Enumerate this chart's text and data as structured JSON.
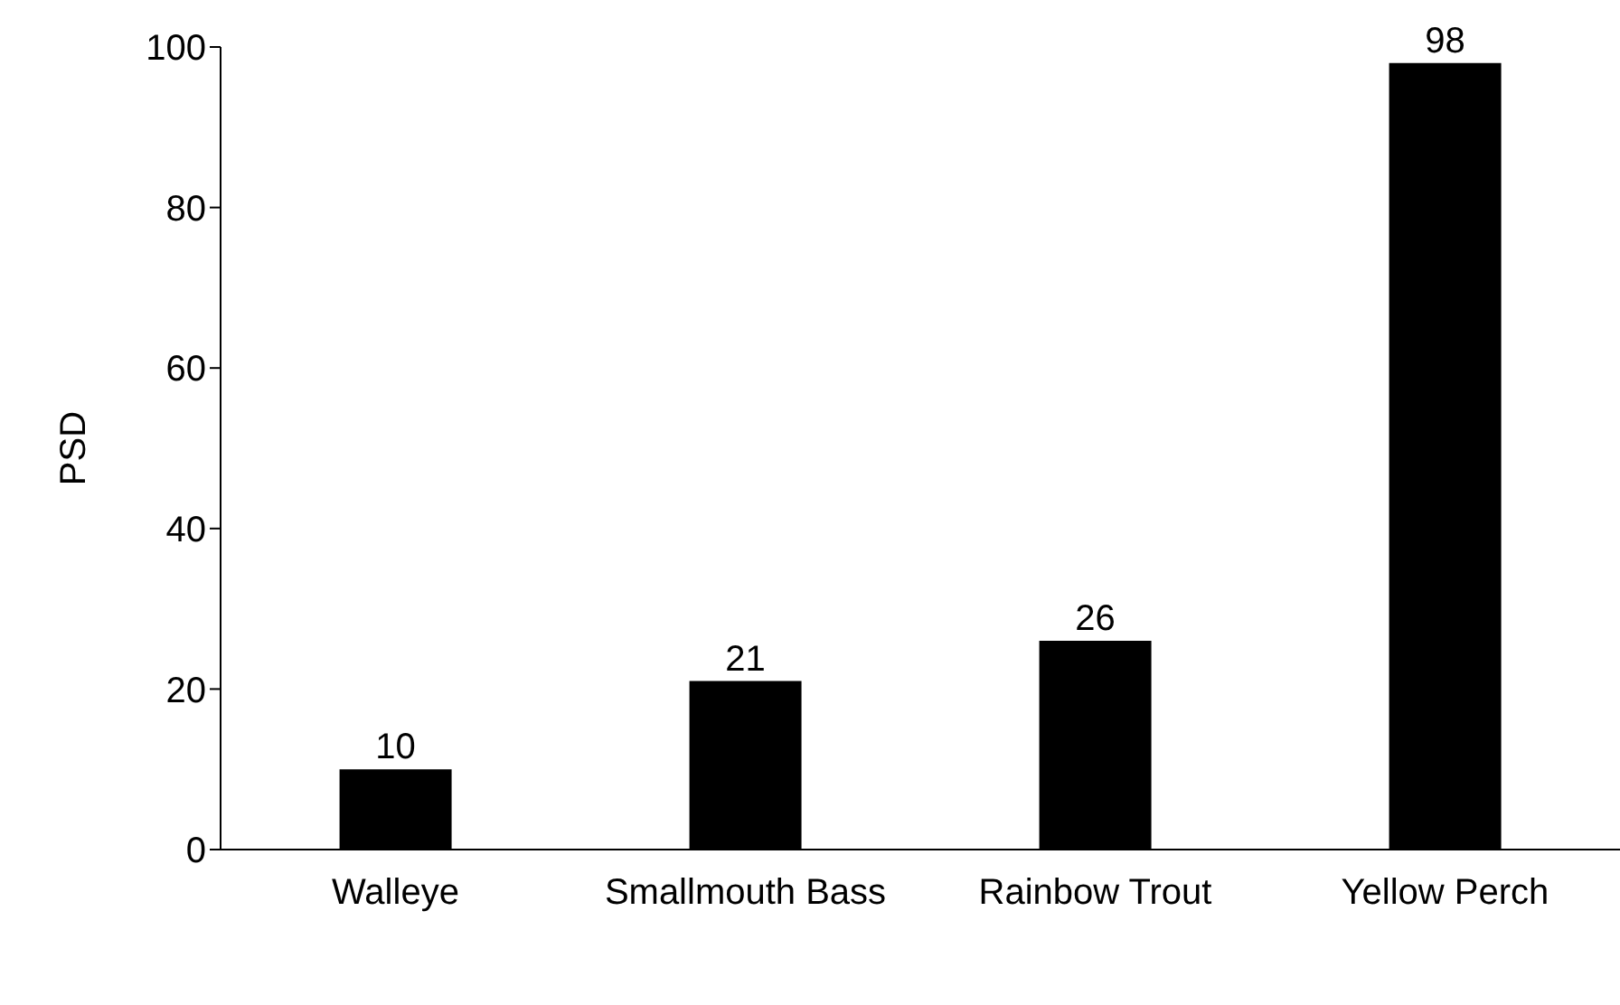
{
  "chart_data": {
    "type": "bar",
    "ylabel": "PSD",
    "categories": [
      "Walleye",
      "Smallmouth Bass",
      "Rainbow Trout",
      "Yellow Perch"
    ],
    "values": [
      10,
      21,
      26,
      98
    ],
    "color": "#000000",
    "ylim": [
      0,
      100
    ],
    "yticks": [
      0,
      20,
      40,
      60,
      80,
      100
    ],
    "data_labels": true,
    "grid": false
  }
}
